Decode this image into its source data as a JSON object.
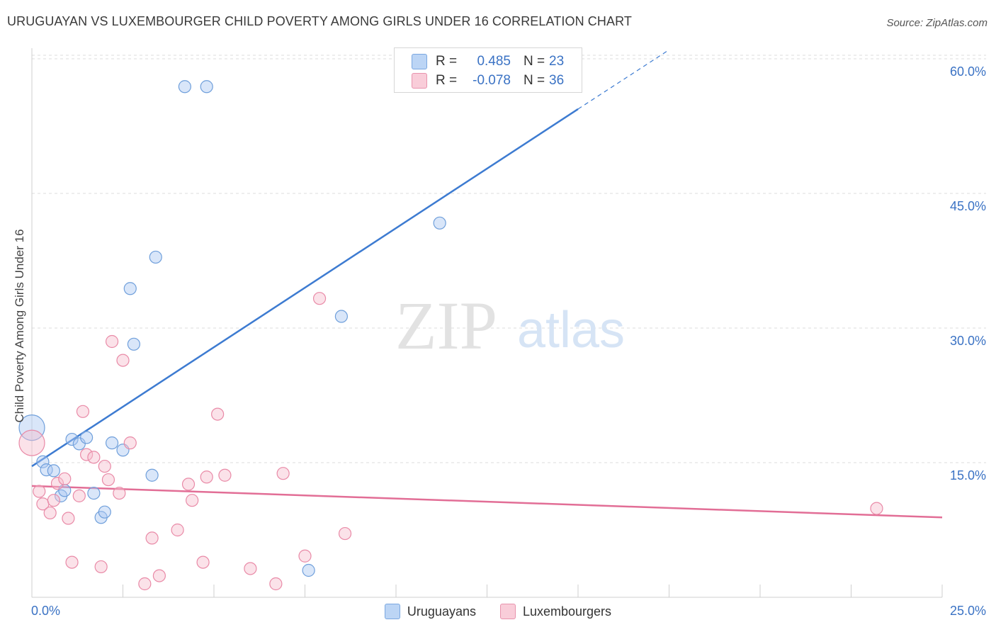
{
  "header": {
    "title": "URUGUAYAN VS LUXEMBOURGER CHILD POVERTY AMONG GIRLS UNDER 16 CORRELATION CHART",
    "source": "Source: ZipAtlas.com"
  },
  "watermark": {
    "zip": "ZIP",
    "atlas": "atlas"
  },
  "legend": {
    "rows": [
      {
        "r_label": "R =",
        "r_value": "0.485",
        "n_label": "N =",
        "n_value": "23",
        "color": "#a9c8f0",
        "border": "#6f9fdb"
      },
      {
        "r_label": "R =",
        "r_value": "-0.078",
        "n_label": "N =",
        "n_value": "36",
        "color": "#f7c1d0",
        "border": "#e98aa7"
      }
    ]
  },
  "bottom_legend": [
    {
      "label": "Uruguayans",
      "color": "#bcd5f5",
      "border": "#7aa7e0"
    },
    {
      "label": "Luxembourgers",
      "color": "#f9cdd9",
      "border": "#e893ad"
    }
  ],
  "chart_data": {
    "type": "scatter",
    "title": "URUGUAYAN VS LUXEMBOURGER CHILD POVERTY AMONG GIRLS UNDER 16 CORRELATION CHART",
    "xlabel": "",
    "ylabel": "Child Poverty Among Girls Under 16",
    "x_tick_labels": {
      "min": "0.0%",
      "max": "25.0%"
    },
    "y_tick_labels": [
      "15.0%",
      "30.0%",
      "45.0%",
      "60.0%"
    ],
    "xlim": [
      0,
      25
    ],
    "ylim": [
      0,
      62
    ],
    "y_ticks": [
      15,
      30,
      45,
      60
    ],
    "x_ticks": [
      0,
      2.5,
      5,
      7.5,
      10,
      12.5,
      15,
      17.5,
      20,
      22.5,
      25
    ],
    "grid": true,
    "legend_position": "top-center",
    "colors": {
      "blue": "#3d7bd1",
      "pink": "#e26e96",
      "tick_label": "#3a72c4"
    },
    "series": [
      {
        "name": "Uruguayans",
        "fill": "rgba(170,200,242,0.45)",
        "stroke": "#6f9fdb",
        "trend": {
          "x0": 0,
          "y0": 14.6,
          "x1": 15,
          "y1": 54.4,
          "dash_to_x": 17.5,
          "dash_to_y": 61
        },
        "points": [
          {
            "x": 0.0,
            "y": 18.9,
            "big": true
          },
          {
            "x": 0.3,
            "y": 15.1
          },
          {
            "x": 0.4,
            "y": 14.2
          },
          {
            "x": 0.6,
            "y": 14.1
          },
          {
            "x": 0.8,
            "y": 11.3
          },
          {
            "x": 0.9,
            "y": 11.9
          },
          {
            "x": 1.1,
            "y": 17.6
          },
          {
            "x": 1.3,
            "y": 17.1
          },
          {
            "x": 1.5,
            "y": 17.8
          },
          {
            "x": 1.7,
            "y": 11.6
          },
          {
            "x": 1.9,
            "y": 8.9
          },
          {
            "x": 2.0,
            "y": 9.5
          },
          {
            "x": 2.2,
            "y": 17.2
          },
          {
            "x": 2.5,
            "y": 16.4
          },
          {
            "x": 2.7,
            "y": 34.4
          },
          {
            "x": 2.8,
            "y": 28.2
          },
          {
            "x": 3.3,
            "y": 13.6
          },
          {
            "x": 3.4,
            "y": 37.9
          },
          {
            "x": 4.2,
            "y": 56.9
          },
          {
            "x": 4.8,
            "y": 56.9
          },
          {
            "x": 7.6,
            "y": 3.0
          },
          {
            "x": 8.5,
            "y": 31.3
          },
          {
            "x": 11.2,
            "y": 41.7
          }
        ]
      },
      {
        "name": "Luxembourgers",
        "fill": "rgba(247,190,207,0.45)",
        "stroke": "#e98aa7",
        "trend": {
          "x0": 0,
          "y0": 12.4,
          "x1": 25,
          "y1": 8.9
        },
        "points": [
          {
            "x": 0.0,
            "y": 17.2,
            "big": true
          },
          {
            "x": 0.2,
            "y": 11.8
          },
          {
            "x": 0.3,
            "y": 10.4
          },
          {
            "x": 0.5,
            "y": 9.4
          },
          {
            "x": 0.6,
            "y": 10.8
          },
          {
            "x": 0.7,
            "y": 12.7
          },
          {
            "x": 0.9,
            "y": 13.2
          },
          {
            "x": 1.0,
            "y": 8.8
          },
          {
            "x": 1.1,
            "y": 3.9
          },
          {
            "x": 1.3,
            "y": 11.3
          },
          {
            "x": 1.4,
            "y": 20.7
          },
          {
            "x": 1.5,
            "y": 15.9
          },
          {
            "x": 1.7,
            "y": 15.6
          },
          {
            "x": 1.9,
            "y": 3.4
          },
          {
            "x": 2.0,
            "y": 14.6
          },
          {
            "x": 2.1,
            "y": 13.1
          },
          {
            "x": 2.2,
            "y": 28.5
          },
          {
            "x": 2.4,
            "y": 11.6
          },
          {
            "x": 2.5,
            "y": 26.4
          },
          {
            "x": 2.7,
            "y": 17.2
          },
          {
            "x": 3.1,
            "y": 1.5
          },
          {
            "x": 3.3,
            "y": 6.6
          },
          {
            "x": 3.5,
            "y": 2.4
          },
          {
            "x": 4.0,
            "y": 7.5
          },
          {
            "x": 4.3,
            "y": 12.6
          },
          {
            "x": 4.4,
            "y": 10.8
          },
          {
            "x": 4.7,
            "y": 3.9
          },
          {
            "x": 4.8,
            "y": 13.4
          },
          {
            "x": 5.1,
            "y": 20.4
          },
          {
            "x": 5.3,
            "y": 13.6
          },
          {
            "x": 6.0,
            "y": 3.2
          },
          {
            "x": 6.7,
            "y": 1.5
          },
          {
            "x": 6.9,
            "y": 13.8
          },
          {
            "x": 7.5,
            "y": 4.6
          },
          {
            "x": 7.9,
            "y": 33.3
          },
          {
            "x": 8.6,
            "y": 7.1
          },
          {
            "x": 23.2,
            "y": 9.9
          }
        ]
      }
    ]
  }
}
